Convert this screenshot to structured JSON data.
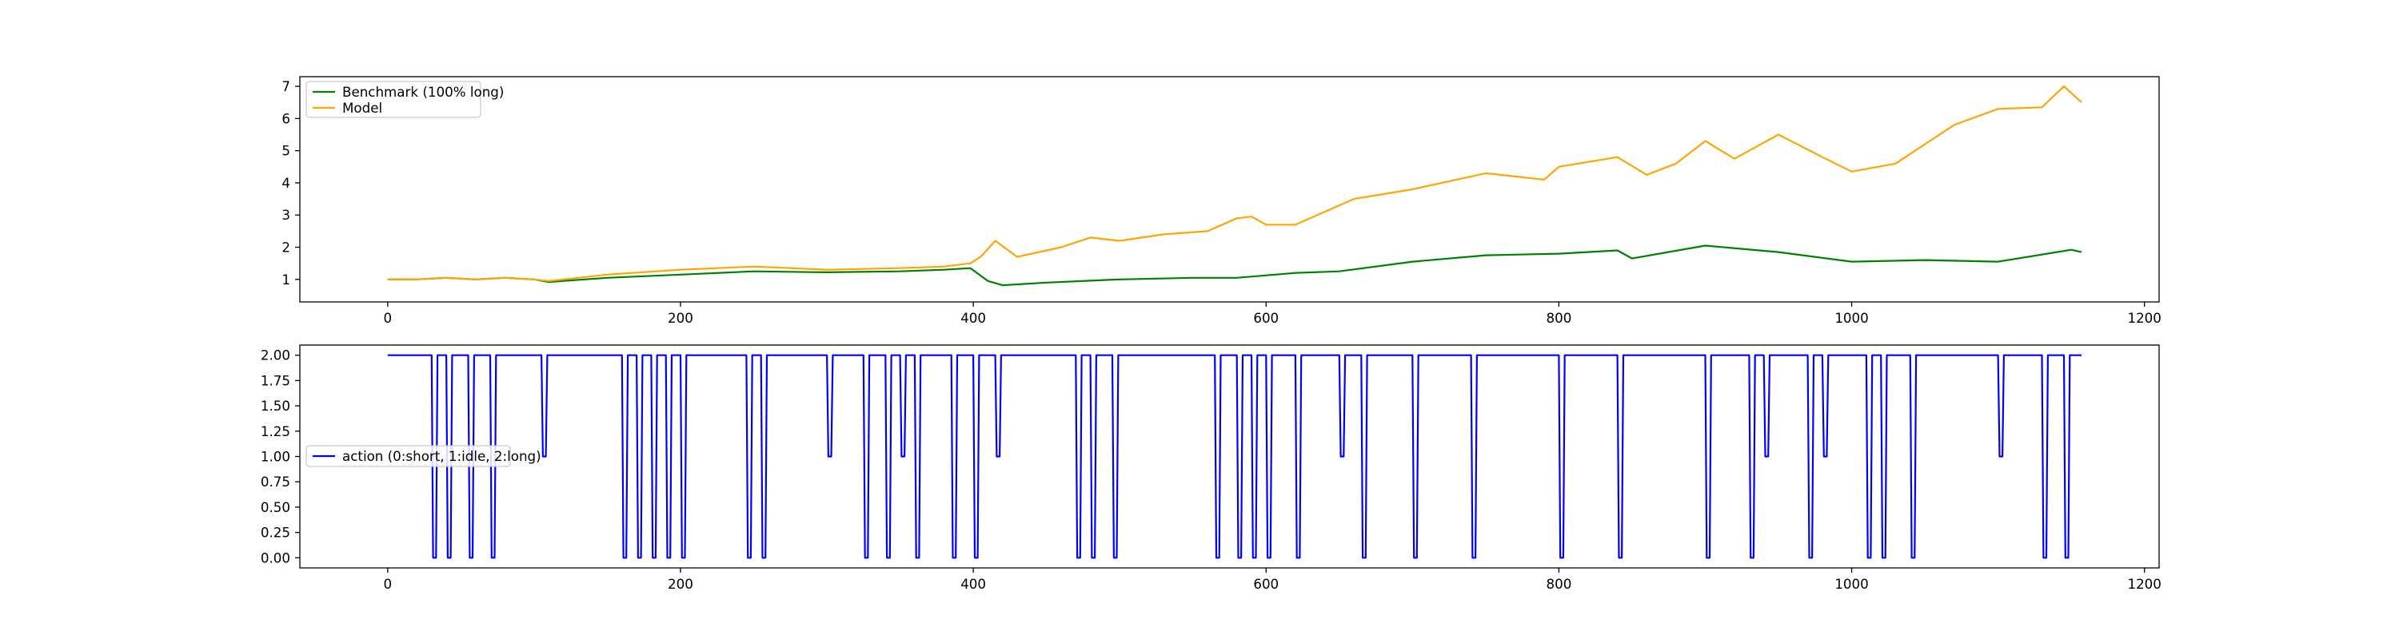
{
  "chart_data": [
    {
      "type": "line",
      "title": "",
      "xlabel": "",
      "ylabel": "",
      "xlim": [
        -60,
        1210
      ],
      "ylim": [
        0.3,
        7.3
      ],
      "x_ticks": [
        0,
        200,
        400,
        600,
        800,
        1000,
        1200
      ],
      "y_ticks": [
        1,
        2,
        3,
        4,
        5,
        6,
        7
      ],
      "grid": false,
      "legend_position": "upper-left",
      "series": [
        {
          "name": "Benchmark (100% long)",
          "color": "#008000",
          "x": [
            0,
            20,
            40,
            60,
            80,
            100,
            110,
            150,
            200,
            250,
            300,
            350,
            380,
            398,
            410,
            420,
            450,
            500,
            550,
            580,
            620,
            650,
            700,
            750,
            800,
            840,
            850,
            900,
            950,
            1000,
            1050,
            1100,
            1150,
            1157
          ],
          "y": [
            1.0,
            1.0,
            1.05,
            1.0,
            1.05,
            1.0,
            0.92,
            1.05,
            1.15,
            1.25,
            1.22,
            1.25,
            1.3,
            1.35,
            0.95,
            0.82,
            0.9,
            1.0,
            1.05,
            1.05,
            1.2,
            1.25,
            1.55,
            1.75,
            1.8,
            1.9,
            1.65,
            2.05,
            1.85,
            1.55,
            1.6,
            1.55,
            1.92,
            1.85
          ]
        },
        {
          "name": "Model",
          "color": "#ffa500",
          "x": [
            0,
            20,
            40,
            60,
            80,
            100,
            110,
            150,
            200,
            250,
            300,
            350,
            380,
            398,
            405,
            415,
            430,
            460,
            480,
            500,
            530,
            560,
            580,
            590,
            600,
            620,
            640,
            660,
            700,
            750,
            790,
            800,
            840,
            860,
            880,
            900,
            920,
            950,
            980,
            1000,
            1030,
            1050,
            1070,
            1100,
            1130,
            1145,
            1157
          ],
          "y": [
            1.0,
            1.0,
            1.05,
            1.0,
            1.05,
            1.0,
            0.95,
            1.15,
            1.3,
            1.4,
            1.3,
            1.35,
            1.4,
            1.5,
            1.7,
            2.2,
            1.7,
            2.0,
            2.3,
            2.2,
            2.4,
            2.5,
            2.9,
            2.95,
            2.7,
            2.7,
            3.1,
            3.5,
            3.8,
            4.3,
            4.1,
            4.5,
            4.8,
            4.25,
            4.6,
            5.3,
            4.75,
            5.5,
            4.8,
            4.35,
            4.6,
            5.2,
            5.8,
            6.3,
            6.35,
            7.0,
            6.5
          ]
        }
      ]
    },
    {
      "type": "line",
      "title": "",
      "xlabel": "",
      "ylabel": "",
      "xlim": [
        -60,
        1210
      ],
      "ylim": [
        -0.1,
        2.1
      ],
      "x_ticks": [
        0,
        200,
        400,
        600,
        800,
        1000,
        1200
      ],
      "y_ticks": [
        0.0,
        0.25,
        0.5,
        0.75,
        1.0,
        1.25,
        1.5,
        1.75,
        2.0
      ],
      "y_tick_labels": [
        "0.00",
        "0.25",
        "0.50",
        "0.75",
        "1.00",
        "1.25",
        "1.50",
        "1.75",
        "2.00"
      ],
      "grid": false,
      "legend_position": "center-left",
      "series": [
        {
          "name": "action (0:short, 1:idle, 2:long)",
          "color": "#0000ff",
          "x": [
            0,
            30,
            31,
            33,
            34,
            35,
            40,
            41,
            43,
            44,
            45,
            55,
            56,
            58,
            59,
            60,
            70,
            71,
            73,
            74,
            75,
            105,
            106,
            108,
            109,
            110,
            160,
            161,
            163,
            164,
            165,
            170,
            171,
            173,
            174,
            175,
            180,
            181,
            183,
            184,
            185,
            190,
            191,
            193,
            194,
            195,
            200,
            201,
            203,
            204,
            205,
            245,
            246,
            248,
            249,
            250,
            255,
            256,
            258,
            259,
            260,
            300,
            301,
            303,
            304,
            305,
            325,
            326,
            328,
            329,
            330,
            340,
            341,
            343,
            344,
            345,
            350,
            351,
            353,
            354,
            355,
            360,
            361,
            363,
            364,
            365,
            385,
            386,
            388,
            389,
            390,
            400,
            401,
            403,
            404,
            405,
            415,
            416,
            418,
            419,
            420,
            470,
            471,
            473,
            474,
            475,
            480,
            481,
            483,
            484,
            485,
            495,
            496,
            498,
            499,
            500,
            565,
            566,
            568,
            569,
            570,
            580,
            581,
            583,
            584,
            585,
            590,
            591,
            593,
            594,
            595,
            600,
            601,
            603,
            604,
            605,
            620,
            621,
            623,
            624,
            625,
            650,
            651,
            653,
            654,
            655,
            665,
            666,
            668,
            669,
            670,
            700,
            701,
            703,
            704,
            705,
            740,
            741,
            743,
            744,
            745,
            800,
            801,
            803,
            804,
            805,
            840,
            841,
            843,
            844,
            845,
            900,
            901,
            903,
            904,
            905,
            930,
            931,
            933,
            934,
            935,
            940,
            941,
            943,
            944,
            945,
            970,
            971,
            973,
            974,
            975,
            980,
            981,
            983,
            984,
            985,
            1010,
            1011,
            1013,
            1014,
            1015,
            1020,
            1021,
            1023,
            1024,
            1025,
            1040,
            1041,
            1043,
            1044,
            1045,
            1100,
            1101,
            1103,
            1104,
            1105,
            1130,
            1131,
            1133,
            1134,
            1135,
            1145,
            1146,
            1148,
            1149,
            1150,
            1157
          ],
          "y": [
            2,
            2,
            0,
            0,
            2,
            2,
            2,
            0,
            0,
            2,
            2,
            2,
            0,
            0,
            2,
            2,
            2,
            0,
            0,
            2,
            2,
            2,
            1,
            1,
            2,
            2,
            2,
            0,
            0,
            2,
            2,
            2,
            0,
            0,
            2,
            2,
            2,
            0,
            0,
            2,
            2,
            2,
            0,
            0,
            2,
            2,
            2,
            0,
            0,
            2,
            2,
            2,
            0,
            0,
            2,
            2,
            2,
            0,
            0,
            2,
            2,
            2,
            1,
            1,
            2,
            2,
            2,
            0,
            0,
            2,
            2,
            2,
            0,
            0,
            2,
            2,
            2,
            1,
            1,
            2,
            2,
            2,
            0,
            0,
            2,
            2,
            2,
            0,
            0,
            2,
            2,
            2,
            0,
            0,
            2,
            2,
            2,
            1,
            1,
            2,
            2,
            2,
            0,
            0,
            2,
            2,
            2,
            0,
            0,
            2,
            2,
            2,
            0,
            0,
            2,
            2,
            2,
            0,
            0,
            2,
            2,
            2,
            0,
            0,
            2,
            2,
            2,
            0,
            0,
            2,
            2,
            2,
            0,
            0,
            2,
            2,
            2,
            0,
            0,
            2,
            2,
            2,
            1,
            1,
            2,
            2,
            2,
            0,
            0,
            2,
            2,
            2,
            0,
            0,
            2,
            2,
            2,
            0,
            0,
            2,
            2,
            2,
            0,
            0,
            2,
            2,
            2,
            0,
            0,
            2,
            2,
            2,
            0,
            0,
            2,
            2,
            2,
            0,
            0,
            2,
            2,
            2,
            1,
            1,
            2,
            2,
            2,
            0,
            0,
            2,
            2,
            2,
            1,
            1,
            2,
            2,
            2,
            0,
            0,
            2,
            2,
            2,
            0,
            0,
            2,
            2,
            2,
            0,
            0,
            2,
            2,
            2,
            1,
            1,
            2,
            2,
            2,
            0,
            0,
            2,
            2,
            2,
            0,
            0,
            2,
            2,
            2
          ]
        }
      ]
    }
  ]
}
